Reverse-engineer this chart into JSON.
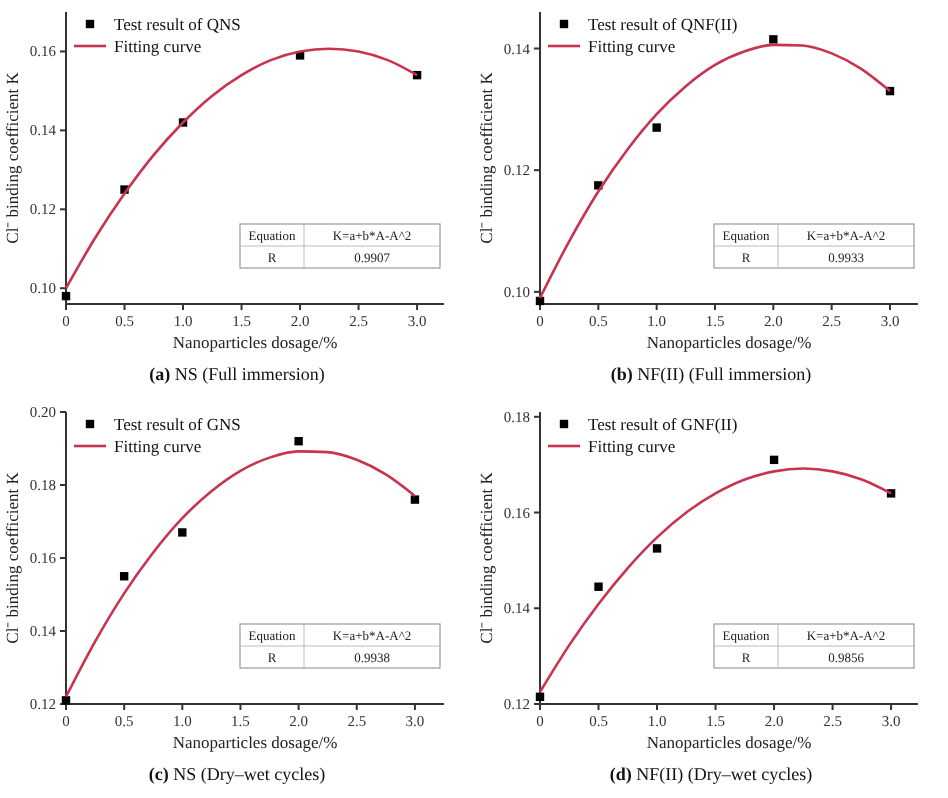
{
  "chart_data": [
    {
      "type": "scatter",
      "title": "(a) NS (Full immersion)",
      "xlabel": "Nanoparticles dosage/%",
      "ylabel": "Cl⁻ binding coefficient K",
      "xlim": [
        0,
        3.23
      ],
      "ylim": [
        0.096,
        0.17
      ],
      "xticks": [
        {
          "value": 0,
          "label": "0"
        },
        {
          "value": 0.5,
          "label": "0.5"
        },
        {
          "value": 1,
          "label": "1.0"
        },
        {
          "value": 1.5,
          "label": "1.5"
        },
        {
          "value": 2,
          "label": "2.0"
        },
        {
          "value": 2.5,
          "label": "2.5"
        },
        {
          "value": 3,
          "label": "3.0"
        }
      ],
      "yticks": [
        {
          "value": 0.1,
          "label": "0.10"
        },
        {
          "value": 0.12,
          "label": "0.12"
        },
        {
          "value": 0.14,
          "label": "0.14"
        },
        {
          "value": 0.16,
          "label": "0.16"
        }
      ],
      "x": [
        0,
        0.5,
        1,
        2,
        3
      ],
      "legend": "top left",
      "series": [
        {
          "name": "Test result of QNS",
          "marker": "square",
          "color": "#000000",
          "values": [
            0.098,
            0.125,
            0.142,
            0.159,
            0.154
          ]
        },
        {
          "name": "Fitting curve",
          "type": "line",
          "marker": "none",
          "color": "#c8344f",
          "x": [
            0,
            0.25,
            0.5,
            0.75,
            1,
            1.25,
            1.5,
            1.75,
            2,
            2.25,
            2.5,
            2.75,
            3
          ],
          "values": [
            0.1,
            0.1128,
            0.124,
            0.1338,
            0.142,
            0.1488,
            0.154,
            0.1578,
            0.16,
            0.1607,
            0.16,
            0.1578,
            0.154
          ]
        }
      ],
      "annotations": [
        "Equation",
        "K=a+b*A-A^2",
        "R",
        "0.9907"
      ]
    },
    {
      "type": "scatter",
      "title": "(b) NF(II) (Full immersion)",
      "xlabel": "Nanoparticles dosage/%",
      "ylabel": "Cl⁻ binding coefficient K",
      "xlim": [
        0,
        3.24
      ],
      "ylim": [
        0.098,
        0.146
      ],
      "xticks": [
        {
          "value": 0,
          "label": "0"
        },
        {
          "value": 0.5,
          "label": "0.5"
        },
        {
          "value": 1,
          "label": "1.0"
        },
        {
          "value": 1.5,
          "label": "1.5"
        },
        {
          "value": 2,
          "label": "2.0"
        },
        {
          "value": 2.5,
          "label": "2.5"
        },
        {
          "value": 3,
          "label": "3.0"
        }
      ],
      "yticks": [
        {
          "value": 0.1,
          "label": "0.10"
        },
        {
          "value": 0.12,
          "label": "0.12"
        },
        {
          "value": 0.14,
          "label": "0.14"
        }
      ],
      "x": [
        0,
        0.5,
        1,
        2,
        3
      ],
      "legend": "top left",
      "series": [
        {
          "name": "Test result of QNF(II)",
          "marker": "square",
          "color": "#000000",
          "values": [
            0.0985,
            0.1175,
            0.127,
            0.1415,
            0.133
          ]
        },
        {
          "name": "Fitting curve",
          "type": "line",
          "marker": "none",
          "color": "#c8344f",
          "x": [
            0,
            0.25,
            0.5,
            0.75,
            1,
            1.25,
            1.5,
            1.75,
            2,
            2.25,
            2.5,
            2.75,
            3
          ],
          "values": [
            0.099,
            0.1083,
            0.1165,
            0.1234,
            0.1292,
            0.1338,
            0.1373,
            0.1395,
            0.1406,
            0.1405,
            0.1392,
            0.1367,
            0.133
          ]
        }
      ],
      "annotations": [
        "Equation",
        "K=a+b*A-A^2",
        "R",
        "0.9933"
      ]
    },
    {
      "type": "scatter",
      "title": "(c) NS (Dry–wet cycles)",
      "xlabel": "Nanoparticles dosage/%",
      "ylabel": "Cl⁻ binding coefficient K",
      "xlim": [
        0,
        3.25
      ],
      "ylim": [
        0.12,
        0.2
      ],
      "xticks": [
        {
          "value": 0,
          "label": "0"
        },
        {
          "value": 0.5,
          "label": "0.5"
        },
        {
          "value": 1,
          "label": "1.0"
        },
        {
          "value": 1.5,
          "label": "1.5"
        },
        {
          "value": 2,
          "label": "2.0"
        },
        {
          "value": 2.5,
          "label": "2.5"
        },
        {
          "value": 3,
          "label": "3.0"
        }
      ],
      "yticks": [
        {
          "value": 0.12,
          "label": "0.12"
        },
        {
          "value": 0.14,
          "label": "0.14"
        },
        {
          "value": 0.16,
          "label": "0.16"
        },
        {
          "value": 0.18,
          "label": "0.18"
        },
        {
          "value": 0.2,
          "label": "0.20"
        }
      ],
      "x": [
        0,
        0.5,
        1,
        2,
        3
      ],
      "legend": "top left",
      "series": [
        {
          "name": "Test result of GNS",
          "marker": "square",
          "color": "#000000",
          "values": [
            0.121,
            0.155,
            0.167,
            0.192,
            0.176
          ]
        },
        {
          "name": "Fitting curve",
          "type": "line",
          "marker": "none",
          "color": "#c8344f",
          "x": [
            0,
            0.25,
            0.5,
            0.75,
            1,
            1.25,
            1.5,
            1.75,
            2,
            2.25,
            2.5,
            2.75,
            3
          ],
          "values": [
            0.122,
            0.1371,
            0.1503,
            0.1615,
            0.1709,
            0.1783,
            0.1839,
            0.1875,
            0.1892,
            0.189,
            0.1869,
            0.1829,
            0.177
          ]
        }
      ],
      "annotations": [
        "Equation",
        "K=a+b*A-A^2",
        "R",
        "0.9938"
      ]
    },
    {
      "type": "scatter",
      "title": "(d) NF(II) (Dry–wet cycles)",
      "xlabel": "Nanoparticles dosage/%",
      "ylabel": "Cl⁻ binding coefficient K",
      "xlim": [
        0,
        3.23
      ],
      "ylim": [
        0.12,
        0.181
      ],
      "xticks": [
        {
          "value": 0,
          "label": "0"
        },
        {
          "value": 0.5,
          "label": "0.5"
        },
        {
          "value": 1,
          "label": "1.0"
        },
        {
          "value": 1.5,
          "label": "1.5"
        },
        {
          "value": 2,
          "label": "2.0"
        },
        {
          "value": 2.5,
          "label": "2.5"
        },
        {
          "value": 3,
          "label": "3.0"
        }
      ],
      "yticks": [
        {
          "value": 0.12,
          "label": "0.12"
        },
        {
          "value": 0.14,
          "label": "0.14"
        },
        {
          "value": 0.16,
          "label": "0.16"
        },
        {
          "value": 0.18,
          "label": "0.18"
        }
      ],
      "x": [
        0,
        0.5,
        1,
        2,
        3
      ],
      "legend": "top left",
      "series": [
        {
          "name": "Test result of GNF(II)",
          "marker": "square",
          "color": "#000000",
          "values": [
            0.1215,
            0.1445,
            0.1525,
            0.171,
            0.164
          ]
        },
        {
          "name": "Fitting curve",
          "type": "line",
          "marker": "none",
          "color": "#c8344f",
          "x": [
            0,
            0.25,
            0.5,
            0.75,
            1,
            1.25,
            1.5,
            1.75,
            2,
            2.25,
            2.5,
            2.75,
            3
          ],
          "values": [
            0.1225,
            0.1323,
            0.1409,
            0.1484,
            0.1548,
            0.16,
            0.164,
            0.1669,
            0.1686,
            0.1692,
            0.1686,
            0.1669,
            0.164
          ]
        }
      ],
      "annotations": [
        "Equation",
        "K=a+b*A-A^2",
        "R",
        "0.9856"
      ]
    }
  ]
}
